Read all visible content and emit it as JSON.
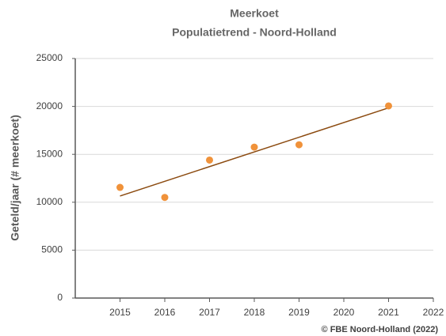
{
  "chart_data": {
    "type": "scatter",
    "title": "Meerkoet",
    "subtitle": "Populatietrend - Noord-Holland",
    "ylabel": "Geteld/jaar (# meerkoet)",
    "annotation": "© FBE Noord-Holland (2022)",
    "series": [
      {
        "x": [
          2015,
          2016,
          2017,
          2018,
          2019,
          2021
        ],
        "values": [
          11550,
          10500,
          14400,
          15750,
          16000,
          20050
        ],
        "color": "#f0923a"
      }
    ],
    "trendline": {
      "x": [
        2015,
        2021
      ],
      "values": [
        10650,
        19850
      ],
      "color": "#8b4a0f"
    },
    "xlim": [
      2014,
      2022
    ],
    "xticks": [
      2015,
      2016,
      2017,
      2018,
      2019,
      2020,
      2021,
      2022
    ],
    "ylim": [
      0,
      25000
    ],
    "yticks": [
      0,
      5000,
      10000,
      15000,
      20000,
      25000
    ],
    "grid": true
  }
}
